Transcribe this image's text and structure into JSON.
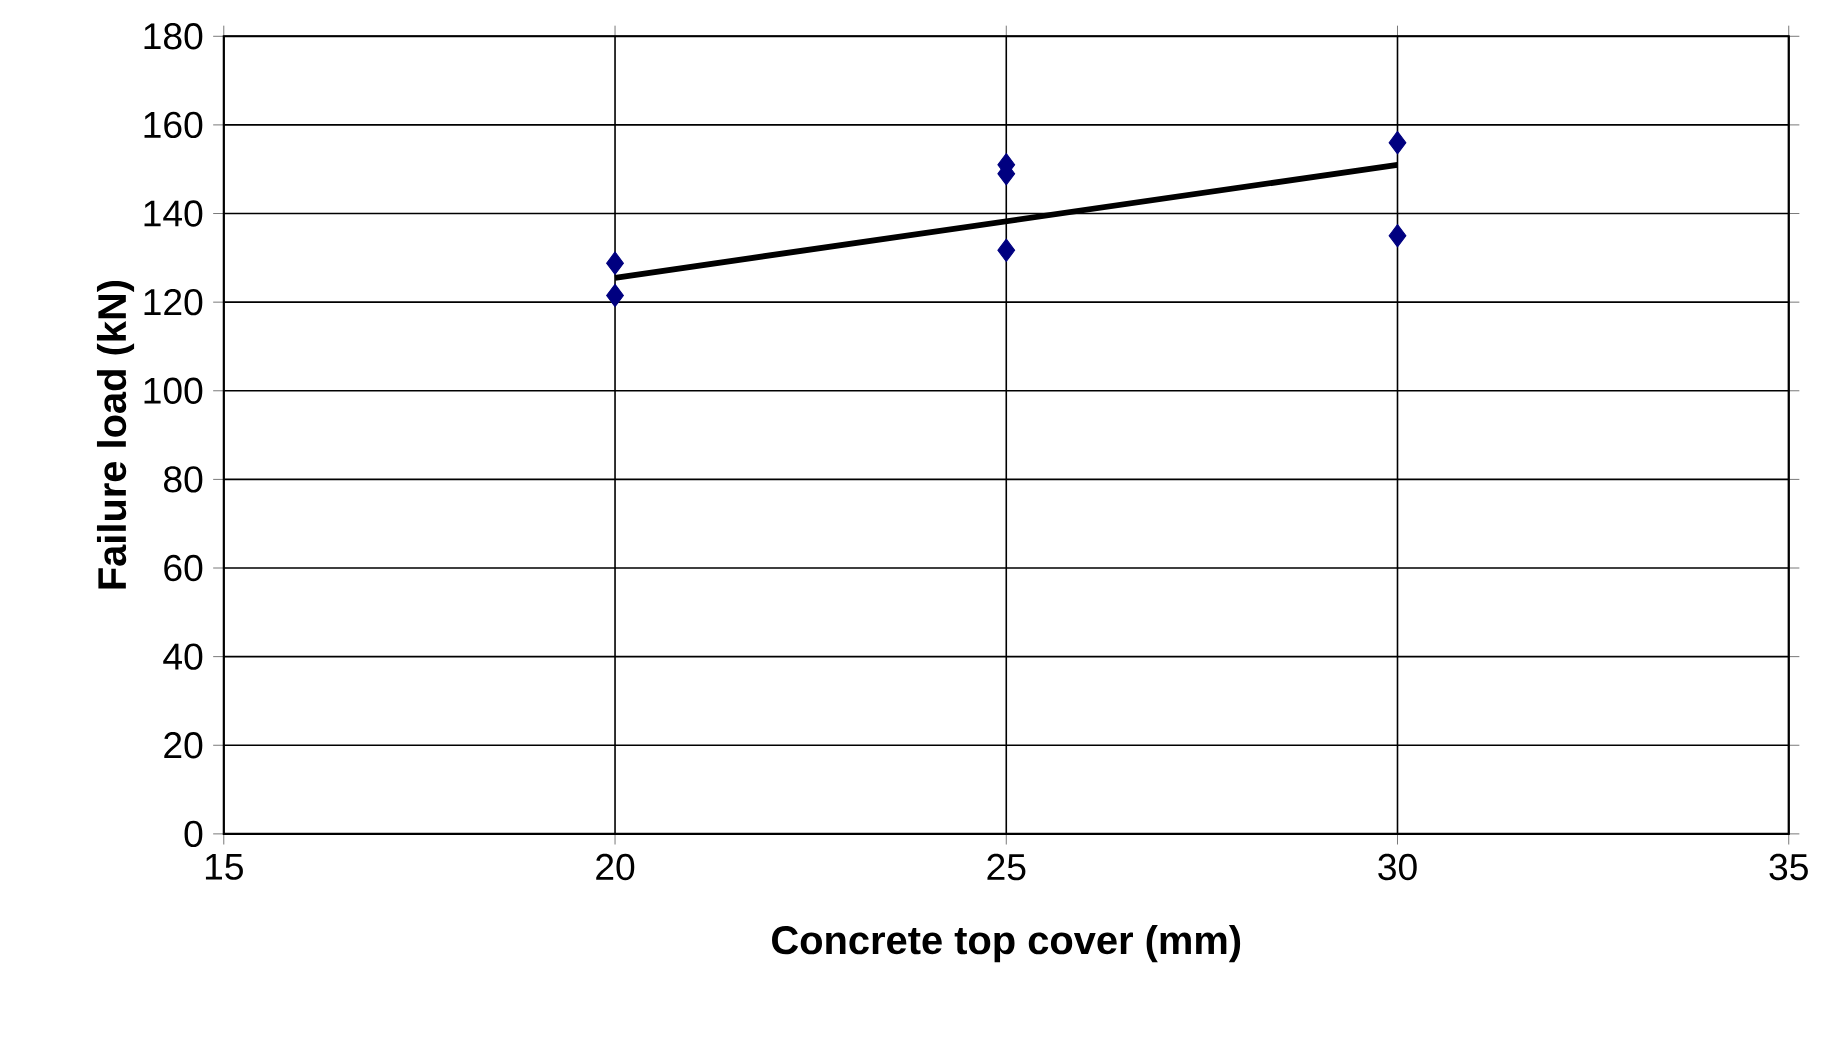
{
  "chart_data": {
    "type": "scatter",
    "xlabel": "Concrete top cover (mm)",
    "ylabel": "Failure load (kN)",
    "xlim": [
      15,
      35
    ],
    "xticks": [
      15,
      20,
      25,
      30,
      35
    ],
    "ylim": [
      0,
      180
    ],
    "yticks": [
      0,
      20,
      40,
      60,
      80,
      100,
      120,
      140,
      160,
      180
    ],
    "grid": true,
    "marker": "diamond",
    "series": [
      {
        "color": "#000080",
        "x": [
          20,
          20,
          25,
          25,
          25,
          30,
          30
        ],
        "values": [
          128.8,
          121.5,
          151,
          149,
          131.7,
          156,
          135
        ]
      },
      {
        "type": "line",
        "marker": "none",
        "color": "#000000",
        "x": [
          20,
          30
        ],
        "values": [
          125.5,
          151
        ]
      }
    ]
  }
}
